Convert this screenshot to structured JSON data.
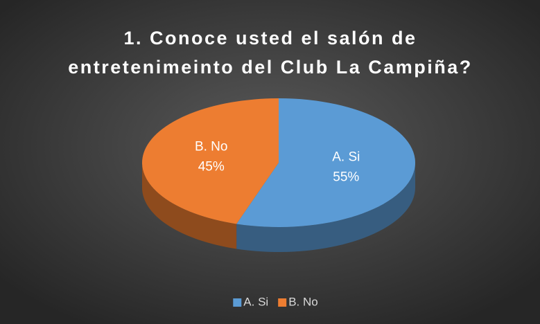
{
  "chart_data": {
    "type": "pie3d",
    "title": "1. Conoce usted el salón de entretenimeinto del Club La Campiña?",
    "categories": [
      "A. Si",
      "B. No"
    ],
    "values": [
      55,
      45
    ],
    "value_labels": [
      "55%",
      "45%"
    ],
    "colors": [
      "#5b9bd5",
      "#ed7d31"
    ],
    "legend": "bottom"
  }
}
